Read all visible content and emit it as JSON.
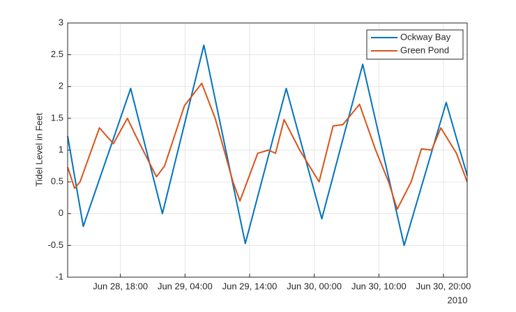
{
  "chart_data": {
    "type": "line",
    "ylabel": "Tidel Level in Feet",
    "x_axis_note": "2010",
    "xlim": [
      "2010-06-28T09:50",
      "2010-06-30T23:40"
    ],
    "xticks": [
      {
        "value": "2010-06-28T18:00",
        "label": "Jun 28, 18:00"
      },
      {
        "value": "2010-06-29T04:00",
        "label": "Jun 29, 04:00"
      },
      {
        "value": "2010-06-29T14:00",
        "label": "Jun 29, 14:00"
      },
      {
        "value": "2010-06-30T00:00",
        "label": "Jun 30, 00:00"
      },
      {
        "value": "2010-06-30T10:00",
        "label": "Jun 30, 10:00"
      },
      {
        "value": "2010-06-30T20:00",
        "label": "Jun 30, 20:00"
      }
    ],
    "ylim": [
      -1,
      3
    ],
    "yticks": [
      -1,
      -0.5,
      0,
      0.5,
      1,
      1.5,
      2,
      2.5,
      3
    ],
    "grid": true,
    "legend": "northeast",
    "series": [
      {
        "name": "Ockway Bay",
        "color": "#0072bd",
        "x": [
          "2010-06-28T09:50",
          "2010-06-28T12:15",
          "2010-06-28T19:35",
          "2010-06-29T00:30",
          "2010-06-29T06:55",
          "2010-06-29T13:20",
          "2010-06-29T19:40",
          "2010-06-30T01:10",
          "2010-06-30T07:30",
          "2010-06-30T13:55",
          "2010-06-30T20:25",
          "2010-06-30T23:40"
        ],
        "values": [
          1.22,
          -0.2,
          1.97,
          0.0,
          2.65,
          -0.47,
          1.97,
          -0.08,
          2.35,
          -0.5,
          1.75,
          0.6
        ]
      },
      {
        "name": "Green Pond",
        "color": "#d95319",
        "x": [
          "2010-06-28T09:50",
          "2010-06-28T10:55",
          "2010-06-28T11:45",
          "2010-06-28T14:45",
          "2010-06-28T16:55",
          "2010-06-28T19:05",
          "2010-06-28T20:30",
          "2010-06-28T23:35",
          "2010-06-29T00:50",
          "2010-06-29T03:55",
          "2010-06-29T06:35",
          "2010-06-29T08:40",
          "2010-06-29T11:25",
          "2010-06-29T12:30",
          "2010-06-29T15:15",
          "2010-06-29T16:55",
          "2010-06-29T18:00",
          "2010-06-29T19:20",
          "2010-06-29T21:45",
          "2010-06-30T00:45",
          "2010-06-30T02:55",
          "2010-06-30T04:25",
          "2010-06-30T07:00",
          "2010-06-30T09:30",
          "2010-06-30T11:30",
          "2010-06-30T12:50",
          "2010-06-30T15:00",
          "2010-06-30T16:35",
          "2010-06-30T18:10",
          "2010-06-30T19:35",
          "2010-06-30T22:00",
          "2010-06-30T23:40"
        ],
        "values": [
          0.73,
          0.4,
          0.5,
          1.35,
          1.1,
          1.5,
          1.2,
          0.58,
          0.75,
          1.7,
          2.05,
          1.5,
          0.5,
          0.2,
          0.95,
          1.0,
          0.95,
          1.48,
          1.0,
          0.5,
          1.38,
          1.4,
          1.72,
          1.0,
          0.5,
          0.07,
          0.5,
          1.02,
          1.0,
          1.35,
          0.95,
          0.5
        ]
      }
    ]
  }
}
